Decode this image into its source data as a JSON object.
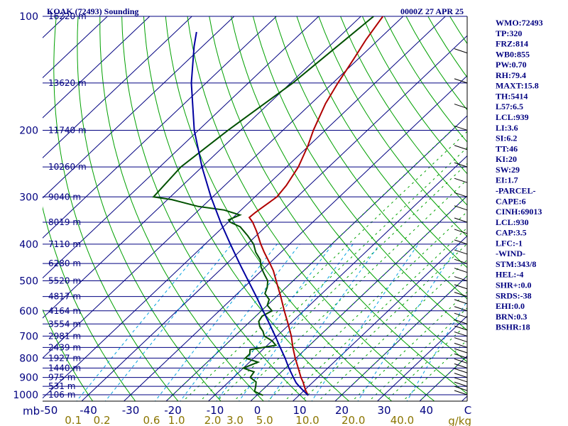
{
  "header": {
    "station_title": "KOAK (72493) Sounding",
    "valid_time": "0000Z 27 APR 25"
  },
  "units": {
    "pressure_unit": "mb",
    "mixing_ratio_unit": "g/kg"
  },
  "indices": [
    "WMO:72493",
    "TP:320",
    "FRZ:814",
    "WB0:855",
    "PW:0.70",
    "RH:79.4",
    "MAXT:15.8",
    "TH:5414",
    "L57:6.5",
    "LCL:939",
    "LI:3.6",
    "SI:6.2",
    "TT:46",
    "KI:20",
    "SW:29",
    "EI:1.7",
    "-PARCEL-",
    "CAPE:6",
    "CINH:69013",
    "LCL:930",
    "CAP:3.5",
    "LFC:-1",
    "-WIND-",
    "STM:343/8",
    "HEL:-4",
    "SHR+:0.0",
    "SRDS:-38",
    "EHI:0.0",
    "BRN:0.3",
    "BSHR:18"
  ],
  "colors": {
    "title_text": "#000080",
    "isobar": "#000080",
    "isotherm": "#000080",
    "dry_adiabat": "#00a000",
    "moist_adiabat": "#00a000",
    "mixing_ratio": "#00a0e0",
    "temperature": "#b00000",
    "dewpoint": "#005000",
    "parcel": "#0000a0",
    "mixing_ratio_labels": "#8b7500"
  },
  "chart_data": {
    "type": "line",
    "title": "KOAK (72493) Sounding",
    "subtitle": "0000Z 27 APR 25",
    "xlabel": "",
    "ylabel": "",
    "pressure_axis": {
      "scale": "log",
      "range_mb": [
        1000,
        100
      ],
      "labels": [
        "100",
        "200",
        "300",
        "400",
        "500",
        "600",
        "700",
        "800",
        "900",
        "1000"
      ],
      "pressures": [
        100,
        200,
        300,
        400,
        500,
        600,
        700,
        800,
        900,
        1000
      ]
    },
    "temperature_axis": {
      "range_c": [
        -50,
        50
      ],
      "labels": [
        "-50",
        "-40",
        "-30",
        "-20",
        "-10",
        "0",
        "10",
        "20",
        "30",
        "40"
      ],
      "values": [
        -50,
        -40,
        -30,
        -20,
        -10,
        0,
        10,
        20,
        30,
        40
      ]
    },
    "extra_axis_label": "C",
    "mixing_ratio_labels": [
      "0.1",
      "0.2",
      "0.6",
      "1.0",
      "2.0",
      "3.0",
      "5.0",
      "10.0",
      "20.0",
      "40.0"
    ],
    "mixing_ratio_values": [
      0.1,
      0.2,
      0.6,
      1.0,
      2.0,
      3.0,
      5.0,
      10.0,
      20.0,
      40.0
    ],
    "height_labels": [
      {
        "p": 100,
        "text": "16220 m"
      },
      {
        "p": 150,
        "text": "13620 m"
      },
      {
        "p": 200,
        "text": "11740 m"
      },
      {
        "p": 250,
        "text": "10260 m"
      },
      {
        "p": 300,
        "text": "9040 m"
      },
      {
        "p": 350,
        "text": "8019 m"
      },
      {
        "p": 400,
        "text": "7110 m"
      },
      {
        "p": 450,
        "text": "6280 m"
      },
      {
        "p": 500,
        "text": "5520 m"
      },
      {
        "p": 550,
        "text": "4817 m"
      },
      {
        "p": 600,
        "text": "4164 m"
      },
      {
        "p": 650,
        "text": "3554 m"
      },
      {
        "p": 700,
        "text": "2981 m"
      },
      {
        "p": 750,
        "text": "2439 m"
      },
      {
        "p": 800,
        "text": "1927 m"
      },
      {
        "p": 850,
        "text": "1440 m"
      },
      {
        "p": 900,
        "text": "975 m"
      },
      {
        "p": 950,
        "text": "531 m"
      },
      {
        "p": 1000,
        "text": "106 m"
      }
    ],
    "series": [
      {
        "key": "temperature",
        "points": [
          [
            1004,
            12.2
          ],
          [
            975,
            10.4
          ],
          [
            950,
            9.0
          ],
          [
            925,
            7.6
          ],
          [
            900,
            6.0
          ],
          [
            850,
            3.0
          ],
          [
            800,
            -0.2
          ],
          [
            750,
            -3.4
          ],
          [
            700,
            -6.6
          ],
          [
            650,
            -10.4
          ],
          [
            600,
            -14.6
          ],
          [
            550,
            -19.0
          ],
          [
            500,
            -24.0
          ],
          [
            470,
            -27.2
          ],
          [
            450,
            -29.8
          ],
          [
            420,
            -34.0
          ],
          [
            400,
            -36.8
          ],
          [
            370,
            -41.0
          ],
          [
            350,
            -44.2
          ],
          [
            340,
            -46.2
          ],
          [
            330,
            -46.0
          ],
          [
            320,
            -45.6
          ],
          [
            300,
            -44.8
          ],
          [
            280,
            -45.4
          ],
          [
            250,
            -47.2
          ],
          [
            220,
            -50.2
          ],
          [
            200,
            -52.8
          ],
          [
            170,
            -56.6
          ],
          [
            150,
            -58.8
          ],
          [
            130,
            -61.0
          ],
          [
            115,
            -63.0
          ],
          [
            100,
            -64.8
          ]
        ]
      },
      {
        "key": "dewpoint",
        "points": [
          [
            1004,
            1.5
          ],
          [
            980,
            -1.5
          ],
          [
            950,
            -2.5
          ],
          [
            925,
            -3.5
          ],
          [
            900,
            -6.0
          ],
          [
            870,
            -6.5
          ],
          [
            850,
            -10.0
          ],
          [
            820,
            -8.0
          ],
          [
            800,
            -12.0
          ],
          [
            780,
            -12.0
          ],
          [
            760,
            -13.0
          ],
          [
            740,
            -8.0
          ],
          [
            720,
            -10.0
          ],
          [
            700,
            -13.0
          ],
          [
            680,
            -14.5
          ],
          [
            660,
            -16.5
          ],
          [
            640,
            -18.0
          ],
          [
            620,
            -18.5
          ],
          [
            600,
            -17.5
          ],
          [
            580,
            -20.0
          ],
          [
            560,
            -21.0
          ],
          [
            540,
            -23.5
          ],
          [
            520,
            -24.5
          ],
          [
            500,
            -26.0
          ],
          [
            480,
            -28.5
          ],
          [
            460,
            -31.0
          ],
          [
            440,
            -33.0
          ],
          [
            420,
            -36.0
          ],
          [
            400,
            -38.5
          ],
          [
            380,
            -42.0
          ],
          [
            360,
            -46.0
          ],
          [
            350,
            -49.5
          ],
          [
            345,
            -50.5
          ],
          [
            335,
            -49.0
          ],
          [
            325,
            -54.0
          ],
          [
            318,
            -61.0
          ],
          [
            305,
            -69.0
          ],
          [
            300,
            -74.0
          ],
          [
            250,
            -75.0
          ],
          [
            200,
            -73.0
          ],
          [
            150,
            -69.5
          ],
          [
            100,
            -67.0
          ]
        ]
      },
      {
        "key": "parcel",
        "points": [
          [
            1004,
            12.2
          ],
          [
            975,
            9.8
          ],
          [
            950,
            7.8
          ],
          [
            930,
            6.2
          ],
          [
            900,
            4.2
          ],
          [
            850,
            0.8
          ],
          [
            800,
            -2.6
          ],
          [
            750,
            -6.4
          ],
          [
            700,
            -10.4
          ],
          [
            650,
            -14.8
          ],
          [
            600,
            -19.6
          ],
          [
            550,
            -24.8
          ],
          [
            500,
            -30.6
          ],
          [
            450,
            -37.0
          ],
          [
            400,
            -44.0
          ],
          [
            350,
            -51.8
          ],
          [
            300,
            -60.4
          ],
          [
            250,
            -70.0
          ],
          [
            200,
            -81.0
          ],
          [
            150,
            -93.5
          ],
          [
            120,
            -102.0
          ],
          [
            110,
            -105.0
          ]
        ]
      }
    ],
    "grid": true
  }
}
